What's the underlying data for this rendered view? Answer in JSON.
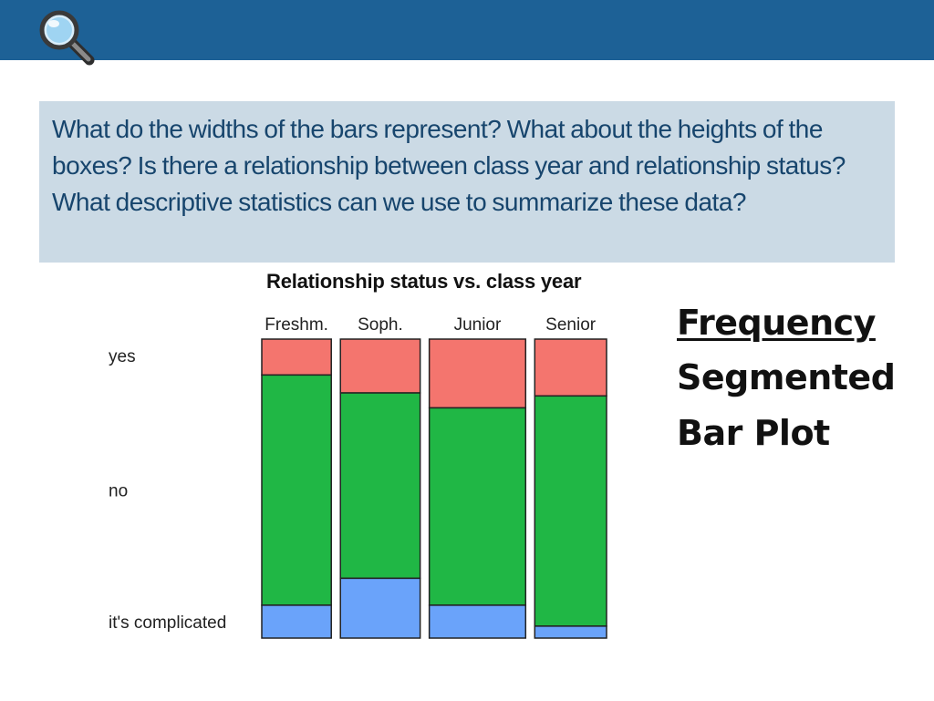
{
  "question": "What do the widths of the bars represent? What about the heights of the boxes? Is there a relationship between class  year and relationship status? What descriptive statistics can we use to summarize these data?",
  "side_label": {
    "line1": "Frequency",
    "line2": "Segmented",
    "line3": "Bar Plot"
  },
  "colors": {
    "header": "#1d6196",
    "question_bg": "#cbdae5",
    "question_text": "#17456d",
    "yes": "#f4756e",
    "no": "#20b745",
    "complicated": "#6aa3fa"
  },
  "icons": [
    "magnifier-icon"
  ],
  "chart_data": {
    "type": "mosaic",
    "title": "Relationship status vs. class year",
    "categories": [
      "Freshm.",
      "Soph.",
      "Junior",
      "Senior"
    ],
    "category_widths": [
      0.184,
      0.211,
      0.255,
      0.19
    ],
    "segments": [
      "yes",
      "no",
      "it's complicated"
    ],
    "series": [
      {
        "name": "yes",
        "values": [
          0.12,
          0.18,
          0.23,
          0.19
        ]
      },
      {
        "name": "no",
        "values": [
          0.77,
          0.62,
          0.66,
          0.77
        ]
      },
      {
        "name": "it's complicated",
        "values": [
          0.11,
          0.2,
          0.11,
          0.04
        ]
      }
    ]
  }
}
